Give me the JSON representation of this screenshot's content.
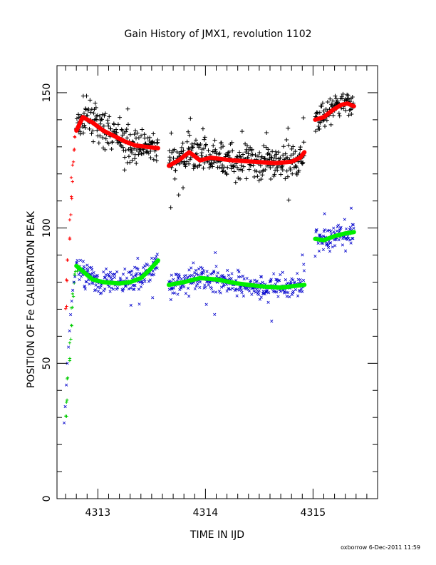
{
  "chart_data": {
    "type": "scatter",
    "title": "Gain History of JMX1, revolution 1102",
    "xlabel": "TIME IN IJD",
    "ylabel": "POSITION OF Fe CALIBRATION PEAK",
    "xlim": [
      4312.62,
      4315.6
    ],
    "ylim": [
      0,
      160
    ],
    "x_ticks": [
      4313,
      4314,
      4315
    ],
    "x_tick_labels": [
      "4313",
      "4314",
      "4315"
    ],
    "y_ticks": [
      0,
      50,
      100,
      150
    ],
    "y_tick_labels": [
      "0",
      "50",
      "100",
      "150"
    ],
    "grid": false,
    "legend": "none",
    "footer": "oxborrow  6-Dec-2011 11:59",
    "colors": {
      "ramp_high": "#ff0000",
      "ramp_low": "#00cc00",
      "points_high": "#000000",
      "points_low": "#0000cc",
      "fit_high": "#ff0000",
      "fit_low": "#00ee00"
    },
    "ramp_points": [
      {
        "x": 4312.7,
        "high": 71,
        "low": 30
      },
      {
        "x": 4312.71,
        "high": 80,
        "low": 36
      },
      {
        "x": 4312.72,
        "high": 88,
        "low": 44
      },
      {
        "x": 4312.73,
        "high": 96,
        "low": 52
      },
      {
        "x": 4312.74,
        "high": 104,
        "low": 58
      },
      {
        "x": 4312.75,
        "high": 111,
        "low": 64
      },
      {
        "x": 4312.76,
        "high": 118,
        "low": 70
      },
      {
        "x": 4312.77,
        "high": 124,
        "low": 75
      },
      {
        "x": 4312.78,
        "high": 129,
        "low": 79
      },
      {
        "x": 4312.79,
        "high": 133,
        "low": 82
      },
      {
        "x": 4312.8,
        "high": 136,
        "low": 84
      }
    ],
    "series": [
      {
        "role": "high-points",
        "segments": [
          {
            "x_start": 4312.8,
            "x_end": 4313.56,
            "fit": [
              [
                4312.8,
                136
              ],
              [
                4312.86,
                141
              ],
              [
                4312.95,
                139
              ],
              [
                4313.05,
                136
              ],
              [
                4313.15,
                134
              ],
              [
                4313.25,
                132
              ],
              [
                4313.35,
                130.5
              ],
              [
                4313.45,
                130
              ],
              [
                4313.56,
                129.5
              ]
            ],
            "spread": 4
          },
          {
            "x_start": 4313.66,
            "x_end": 4314.92,
            "fit": [
              [
                4313.66,
                123
              ],
              [
                4313.75,
                125
              ],
              [
                4313.85,
                128
              ],
              [
                4313.95,
                125
              ],
              [
                4314.05,
                126
              ],
              [
                4314.25,
                125
              ],
              [
                4314.45,
                124.5
              ],
              [
                4314.65,
                124
              ],
              [
                4314.8,
                124.5
              ],
              [
                4314.88,
                126
              ],
              [
                4314.92,
                128
              ]
            ],
            "spread": 4
          },
          {
            "x_start": 4315.02,
            "x_end": 4315.38,
            "fit": [
              [
                4315.02,
                140
              ],
              [
                4315.1,
                141
              ],
              [
                4315.18,
                143.5
              ],
              [
                4315.26,
                145.5
              ],
              [
                4315.32,
                146
              ],
              [
                4315.38,
                145
              ]
            ],
            "spread": 3
          }
        ]
      },
      {
        "role": "low-points",
        "segments": [
          {
            "x_start": 4312.8,
            "x_end": 4313.56,
            "fit": [
              [
                4312.8,
                86
              ],
              [
                4312.86,
                84
              ],
              [
                4312.95,
                81
              ],
              [
                4313.05,
                80
              ],
              [
                4313.2,
                79.5
              ],
              [
                4313.3,
                80
              ],
              [
                4313.4,
                81.5
              ],
              [
                4313.48,
                84.5
              ],
              [
                4313.56,
                88
              ]
            ],
            "spread": 3
          },
          {
            "x_start": 4313.66,
            "x_end": 4314.92,
            "fit": [
              [
                4313.66,
                79
              ],
              [
                4313.8,
                80
              ],
              [
                4313.95,
                81.5
              ],
              [
                4314.1,
                81
              ],
              [
                4314.3,
                79.5
              ],
              [
                4314.5,
                78.5
              ],
              [
                4314.7,
                78
              ],
              [
                4314.92,
                79
              ]
            ],
            "spread": 3
          },
          {
            "x_start": 4315.02,
            "x_end": 4315.38,
            "fit": [
              [
                4315.02,
                96
              ],
              [
                4315.1,
                95.5
              ],
              [
                4315.2,
                97
              ],
              [
                4315.3,
                98
              ],
              [
                4315.38,
                98.5
              ]
            ],
            "spread": 3
          }
        ]
      }
    ]
  }
}
